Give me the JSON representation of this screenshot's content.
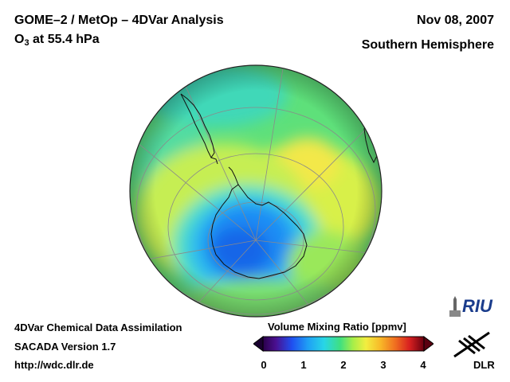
{
  "header": {
    "title": "GOME–2 / MetOp – 4DVar Analysis",
    "species_prefix": "O",
    "species_subscript": "3",
    "species_suffix": " at 55.4 hPa",
    "date": "Nov 08, 2007",
    "region": "Southern Hemisphere"
  },
  "footer": {
    "line1": "4DVar Chemical Data Assimilation",
    "line2": "SACADA Version 1.7",
    "line3": "http://wdc.dlr.de"
  },
  "colorbar": {
    "title": "Volume Mixing Ratio [ppmv]",
    "ticks": [
      "0",
      "1",
      "2",
      "3",
      "4"
    ],
    "min": 0,
    "max": 4
  },
  "logos": {
    "riu": "RIU",
    "dlr": "DLR"
  },
  "map": {
    "projection": "orthographic, south polar view",
    "features": [
      "ozone field",
      "coastlines",
      "graticule"
    ]
  }
}
